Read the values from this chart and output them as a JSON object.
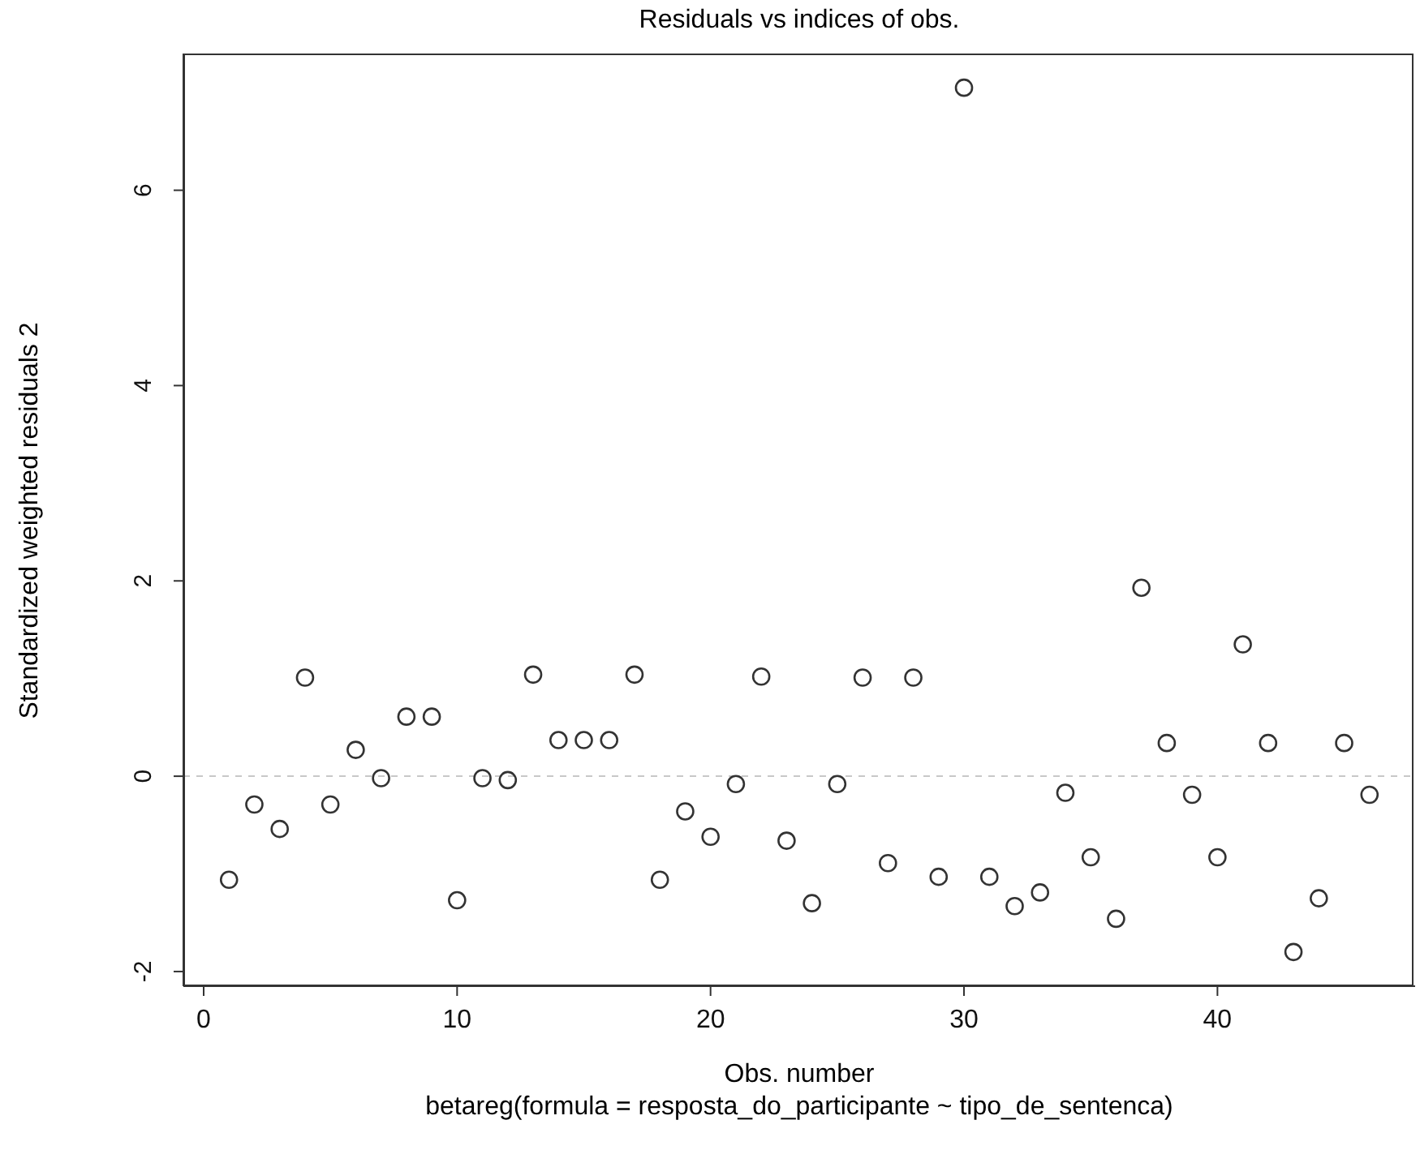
{
  "chart_data": {
    "type": "scatter",
    "title": "Residuals vs indices of obs.",
    "subtitle": "betareg(formula = resposta_do_participante ~ tipo_de_sentenca)",
    "xlabel": "Obs. number",
    "ylabel": "Standardized weighted residuals 2",
    "x": [
      1,
      2,
      3,
      4,
      5,
      6,
      7,
      8,
      9,
      10,
      11,
      12,
      13,
      14,
      15,
      16,
      17,
      18,
      19,
      20,
      21,
      22,
      23,
      24,
      25,
      26,
      27,
      28,
      29,
      30,
      31,
      32,
      33,
      34,
      35,
      36,
      37,
      38,
      39,
      40,
      41,
      42,
      43,
      44,
      45,
      46
    ],
    "series": [
      {
        "color": "#333333",
        "values": [
          -1.06,
          -0.29,
          -0.54,
          1.01,
          -0.29,
          0.27,
          -0.02,
          0.61,
          0.61,
          -1.27,
          -0.02,
          -0.04,
          1.04,
          0.37,
          0.37,
          0.37,
          1.04,
          -1.06,
          -0.36,
          -0.62,
          -0.08,
          1.02,
          -0.66,
          -1.3,
          -0.08,
          1.01,
          -0.89,
          1.01,
          -1.03,
          7.05,
          -1.03,
          -1.33,
          -1.19,
          -0.17,
          -0.83,
          -1.46,
          1.93,
          0.34,
          -0.19,
          -0.83,
          1.35,
          0.34,
          -1.8,
          -1.25,
          0.34,
          -0.19
        ]
      }
    ],
    "xlim": [
      -0.8,
      47.8
    ],
    "ylim": [
      -2.15,
      7.4
    ],
    "xticks": [
      0,
      10,
      20,
      30,
      40
    ],
    "yticks": [
      -2,
      0,
      2,
      4,
      6
    ],
    "ref_lines": [
      {
        "axis": "y",
        "value": 0,
        "color": "#c8c8c8",
        "line_style": "dashed"
      }
    ],
    "marker": "circle",
    "grid": false,
    "legend": false
  }
}
